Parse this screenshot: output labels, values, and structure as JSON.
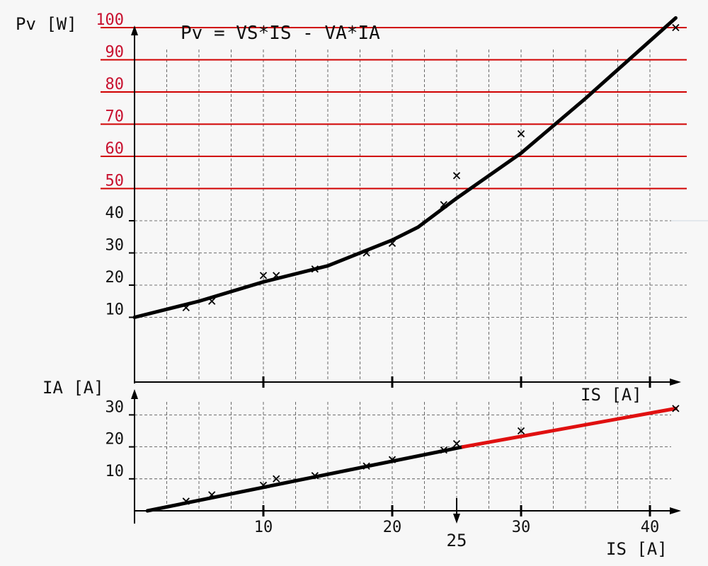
{
  "chart_data": [
    {
      "type": "scatter",
      "title": "Pv = VS*IS - VA*IA",
      "ylabel": "Pv [W]",
      "xlabel": "IS [A]",
      "ylim": [
        0,
        100
      ],
      "xlim": [
        0,
        42
      ],
      "yticks": [
        "10",
        "20",
        "30",
        "40",
        "50",
        "60",
        "70",
        "80",
        "90",
        "100"
      ],
      "highlight_ticks": [
        "50",
        "60",
        "70",
        "80",
        "90",
        "100"
      ],
      "highlight_color": "#d00000",
      "grid": true,
      "series": [
        {
          "type": "scatter",
          "marker": "x",
          "x": [
            4,
            6,
            10,
            11,
            14,
            18,
            20,
            24,
            25,
            30,
            42
          ],
          "y": [
            13,
            15,
            23,
            23,
            25,
            30,
            33,
            45,
            54,
            67,
            100
          ]
        },
        {
          "type": "line",
          "color": "#000000",
          "x": [
            0,
            5,
            10,
            15,
            20,
            22,
            25,
            30,
            35,
            42
          ],
          "y": [
            10,
            15,
            21,
            26,
            34,
            38,
            47,
            61,
            78,
            103
          ]
        }
      ]
    },
    {
      "type": "scatter",
      "ylabel": "IA [A]",
      "xlabel": "IS [A]",
      "ylim": [
        0,
        33
      ],
      "xlim": [
        0,
        42
      ],
      "yticks": [
        "10",
        "20",
        "30"
      ],
      "xticks": [
        "10",
        "20",
        "30",
        "40"
      ],
      "marker_tick": "25",
      "grid": true,
      "series": [
        {
          "type": "scatter",
          "marker": "x",
          "x": [
            4,
            6,
            10,
            11,
            14,
            18,
            20,
            24,
            25,
            30,
            42
          ],
          "y": [
            3,
            5,
            8,
            10,
            11,
            14,
            16,
            19,
            21,
            25,
            32
          ]
        },
        {
          "type": "line",
          "color": "#000000",
          "x": [
            1,
            25.5
          ],
          "y": [
            0,
            20
          ]
        },
        {
          "type": "line",
          "color": "#e01010",
          "x": [
            25.5,
            42
          ],
          "y": [
            20,
            32
          ]
        }
      ]
    }
  ]
}
